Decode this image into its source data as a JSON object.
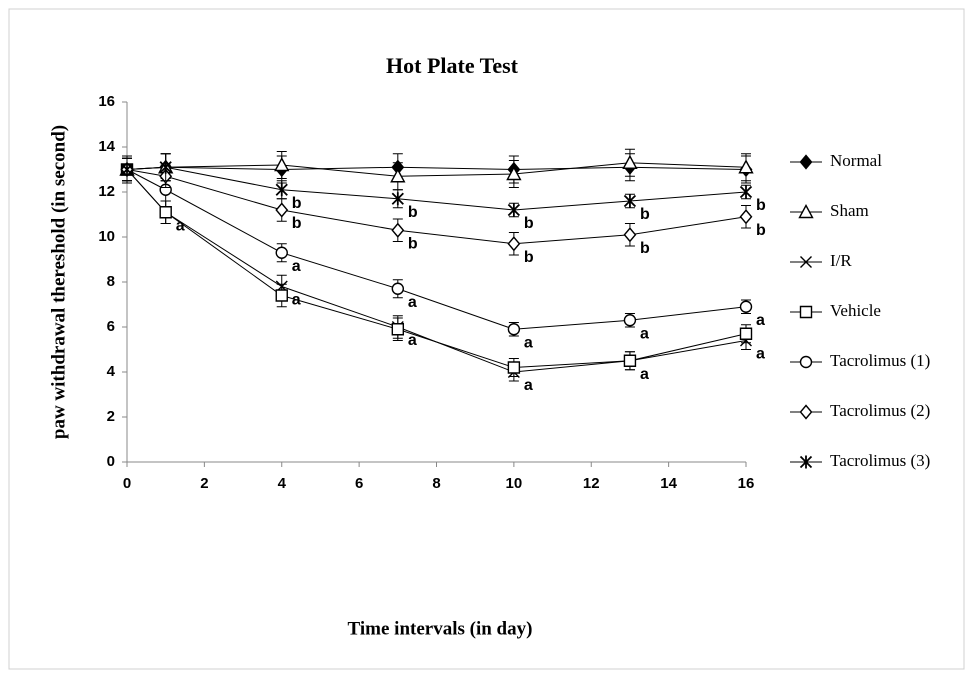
{
  "chart_data": {
    "type": "line",
    "title": "Hot Plate Test",
    "x_label": "Time  intervals (in day)",
    "y_label": "paw withdrawal thereshold (in second)",
    "x": [
      0,
      1,
      4,
      7,
      10,
      13,
      16
    ],
    "xlim": [
      0,
      16
    ],
    "xticks": [
      0,
      2,
      4,
      6,
      8,
      10,
      12,
      14,
      16
    ],
    "ylim": [
      0,
      16
    ],
    "yticks": [
      0,
      2,
      4,
      6,
      8,
      10,
      12,
      14,
      16
    ],
    "grid": false,
    "legend": "right",
    "series": [
      {
        "name": "Normal",
        "color": "#000000",
        "marker": "diamond-filled",
        "values": [
          13,
          13.1,
          13,
          13.1,
          13,
          13.1,
          13
        ],
        "errors": [
          0.6,
          0.6,
          0.6,
          0.6,
          0.6,
          0.6,
          0.6
        ],
        "annotations": [
          null,
          null,
          null,
          null,
          null,
          null,
          null
        ]
      },
      {
        "name": "Sham",
        "color": "#000000",
        "marker": "triangle",
        "values": [
          13,
          13.1,
          13.2,
          12.7,
          12.8,
          13.3,
          13.1
        ],
        "errors": [
          0.6,
          0.6,
          0.6,
          0.6,
          0.6,
          0.6,
          0.6
        ],
        "annotations": [
          null,
          null,
          null,
          null,
          null,
          null,
          null
        ]
      },
      {
        "name": "I/R",
        "color": "#000000",
        "marker": "x",
        "values": [
          13,
          11.1,
          7.8,
          6,
          4,
          4.5,
          5.4
        ],
        "errors": [
          0.5,
          0.5,
          0.5,
          0.5,
          0.4,
          0.4,
          0.4
        ],
        "annotations": [
          null,
          "a",
          "a",
          "a",
          "a",
          "a",
          "a"
        ]
      },
      {
        "name": "Vehicle",
        "color": "#000000",
        "marker": "square",
        "values": [
          13,
          11.1,
          7.4,
          5.9,
          4.2,
          4.5,
          5.7
        ],
        "errors": [
          0.5,
          0.5,
          0.5,
          0.5,
          0.4,
          0.4,
          0.4
        ],
        "annotations": [
          null,
          null,
          null,
          null,
          null,
          null,
          null
        ]
      },
      {
        "name": "Tacrolimus (1)",
        "color": "#000000",
        "marker": "circle",
        "values": [
          13,
          12.1,
          9.3,
          7.7,
          5.9,
          6.3,
          6.9
        ],
        "errors": [
          0.5,
          0.5,
          0.4,
          0.4,
          0.3,
          0.3,
          0.3
        ],
        "annotations": [
          null,
          null,
          "a",
          "a",
          "a",
          "a",
          "a"
        ]
      },
      {
        "name": "Tacrolimus (2)",
        "color": "#000000",
        "marker": "diamond",
        "values": [
          13,
          12.7,
          11.2,
          10.3,
          9.7,
          10.1,
          10.9
        ],
        "errors": [
          0.5,
          0.5,
          0.5,
          0.5,
          0.5,
          0.5,
          0.5
        ],
        "annotations": [
          null,
          null,
          "b",
          "b",
          "b",
          "b",
          "b"
        ]
      },
      {
        "name": "Tacrolimus (3)",
        "color": "#000000",
        "marker": "asterisk",
        "values": [
          13,
          13.1,
          12.1,
          11.7,
          11.2,
          11.6,
          12
        ],
        "errors": [
          0.6,
          0.6,
          0.4,
          0.4,
          0.3,
          0.3,
          0.3
        ],
        "annotations": [
          null,
          null,
          "b",
          "b",
          "b",
          "b",
          "b"
        ]
      }
    ]
  }
}
